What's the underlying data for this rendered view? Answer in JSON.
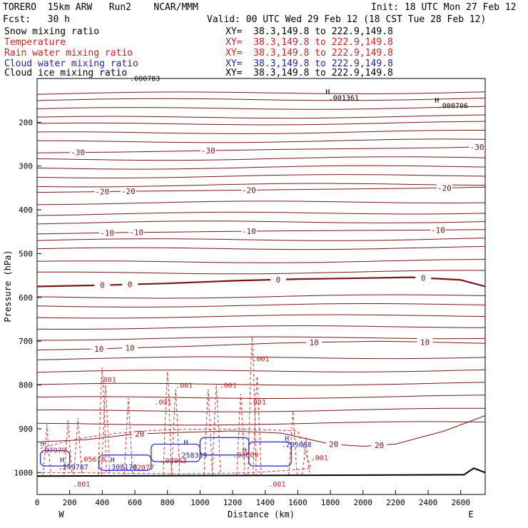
{
  "header": {
    "model": "TORERO  15km ARW   Run2    NCAR/MMM",
    "init": "Init: 18 UTC Mon 27 Feb 12",
    "fcst": "Fcst:   30 h",
    "valid": "Valid: 00 UTC Wed 29 Feb 12 (18 CST Tue 28 Feb 12)"
  },
  "legend": [
    {
      "name": "Snow mixing ratio",
      "xy": "XY=  38.3,149.8 to 222.9,149.8",
      "color": "#000000"
    },
    {
      "name": "Temperature",
      "xy": "XY=  38.3,149.8 to 222.9,149.8",
      "color": "#d02020"
    },
    {
      "name": "Rain water mixing ratio",
      "xy": "XY=  38.3,149.8 to 222.9,149.8",
      "color": "#d02020"
    },
    {
      "name": "Cloud water mixing ratio",
      "xy": "XY=  38.3,149.8 to 222.9,149.8",
      "color": "#2020c0"
    },
    {
      "name": "Cloud ice mixing ratio",
      "xy": "XY=  38.3,149.8 to 222.9,149.8",
      "color": "#000000"
    }
  ],
  "chart_data": {
    "type": "line",
    "title": "",
    "xlabel": "Distance (km)",
    "ylabel": "Pressure (hPa)",
    "xlim": [
      0,
      2750
    ],
    "ylim": [
      1050,
      100
    ],
    "x_ticks": [
      0,
      200,
      400,
      600,
      800,
      1000,
      1200,
      1400,
      1600,
      1800,
      2000,
      2200,
      2400,
      2600
    ],
    "y_ticks": [
      200,
      300,
      400,
      500,
      600,
      700,
      800,
      900,
      1000
    ],
    "x_end_labels": {
      "left": "W",
      "right": "E"
    },
    "series": [
      {
        "level": -30,
        "label": "-30",
        "points": [
          [
            0,
            270
          ],
          [
            500,
            268
          ],
          [
            1000,
            265
          ],
          [
            1500,
            262
          ],
          [
            2000,
            260
          ],
          [
            2500,
            258
          ],
          [
            2750,
            256
          ]
        ],
        "labels_at": [
          250,
          1050,
          2700
        ]
      },
      {
        "level": -20,
        "label": "-20",
        "points": [
          [
            0,
            360
          ],
          [
            500,
            358
          ],
          [
            1000,
            356
          ],
          [
            1500,
            354
          ],
          [
            2000,
            352
          ],
          [
            2500,
            350
          ],
          [
            2750,
            348
          ]
        ],
        "labels_at": [
          400,
          560,
          1300,
          2500
        ]
      },
      {
        "level": -10,
        "label": "-10",
        "points": [
          [
            0,
            455
          ],
          [
            500,
            452
          ],
          [
            1000,
            450
          ],
          [
            1500,
            448
          ],
          [
            2000,
            447
          ],
          [
            2500,
            446
          ],
          [
            2750,
            445
          ]
        ],
        "labels_at": [
          430,
          610,
          1300,
          2460
        ]
      },
      {
        "level": 0,
        "label": "0",
        "points": [
          [
            0,
            575
          ],
          [
            400,
            572
          ],
          [
            800,
            568
          ],
          [
            1200,
            562
          ],
          [
            1600,
            558
          ],
          [
            2000,
            556
          ],
          [
            2300,
            554
          ],
          [
            2600,
            560
          ],
          [
            2750,
            575
          ]
        ],
        "labels_at": [
          400,
          570,
          1480,
          2370
        ]
      },
      {
        "level": 10,
        "label": "10",
        "points": [
          [
            0,
            720
          ],
          [
            300,
            718
          ],
          [
            600,
            715
          ],
          [
            900,
            712
          ],
          [
            1200,
            708
          ],
          [
            1500,
            704
          ],
          [
            1800,
            702
          ],
          [
            2100,
            700
          ],
          [
            2400,
            702
          ],
          [
            2750,
            705
          ]
        ],
        "labels_at": [
          380,
          570,
          1700,
          2380
        ]
      },
      {
        "level": 20,
        "label": "20",
        "points": [
          [
            0,
            930
          ],
          [
            300,
            925
          ],
          [
            600,
            912
          ],
          [
            900,
            908
          ],
          [
            1200,
            905
          ],
          [
            1500,
            910
          ],
          [
            1800,
            935
          ],
          [
            2000,
            940
          ],
          [
            2200,
            935
          ],
          [
            2500,
            905
          ],
          [
            2750,
            870
          ]
        ],
        "labels_at": [
          630,
          1820,
          2100
        ]
      }
    ],
    "annotations": [
      {
        "text": "H",
        "x": 1770,
        "y": 136
      },
      {
        "text": ".001361",
        "x": 1790,
        "y": 150
      },
      {
        "text": "H",
        "x": 2440,
        "y": 155
      },
      {
        "text": ".000706",
        "x": 2460,
        "y": 168
      },
      {
        "text": ".000783",
        "x": 570,
        "y": 106
      },
      {
        "text": ".001",
        "x": 1320,
        "y": 746,
        "color": "#d02020"
      },
      {
        "text": ".001",
        "x": 380,
        "y": 793,
        "color": "#d02020"
      },
      {
        "text": ".001",
        "x": 850,
        "y": 806,
        "color": "#d02020"
      },
      {
        "text": ".001",
        "x": 1120,
        "y": 806,
        "color": "#d02020"
      },
      {
        "text": ".001",
        "x": 720,
        "y": 845,
        "color": "#d02020"
      },
      {
        "text": ".001",
        "x": 1300,
        "y": 845,
        "color": "#d02020"
      },
      {
        "text": "H",
        "x": 20,
        "y": 940,
        "color": "#d02020"
      },
      {
        "text": ".07979",
        "x": 20,
        "y": 955,
        "color": "#d02020"
      },
      {
        "text": ".05618",
        "x": 260,
        "y": 975,
        "color": "#d02020"
      },
      {
        "text": ".03963",
        "x": 760,
        "y": 978,
        "color": "#d02020"
      },
      {
        "text": ".03809",
        "x": 1200,
        "y": 965,
        "color": "#d02020"
      },
      {
        "text": ".001",
        "x": 1680,
        "y": 972,
        "color": "#d02020"
      },
      {
        "text": ".02077",
        "x": 560,
        "y": 994,
        "color": "#d02020"
      },
      {
        "text": ".001",
        "x": 220,
        "y": 1032,
        "color": "#d02020"
      },
      {
        "text": ".001",
        "x": 1420,
        "y": 1032,
        "color": "#d02020"
      },
      {
        "text": "H",
        "x": 900,
        "y": 937,
        "color": "#2020c0"
      },
      {
        "text": ".258339",
        "x": 860,
        "y": 966,
        "color": "#2020c0"
      },
      {
        "text": "H",
        "x": 1520,
        "y": 928,
        "color": "#2020c0"
      },
      {
        "text": ".205068",
        "x": 1500,
        "y": 942,
        "color": "#2020c0"
      },
      {
        "text": "H",
        "x": 140,
        "y": 977,
        "color": "#2020c0"
      },
      {
        "text": ".249787",
        "x": 130,
        "y": 993,
        "color": "#2020c0"
      },
      {
        "text": "H",
        "x": 450,
        "y": 977,
        "color": "#2020c0"
      },
      {
        "text": ".308178",
        "x": 430,
        "y": 993,
        "color": "#2020c0"
      },
      {
        "text": "H",
        "x": 1260,
        "y": 955,
        "color": "#d02020"
      }
    ]
  }
}
